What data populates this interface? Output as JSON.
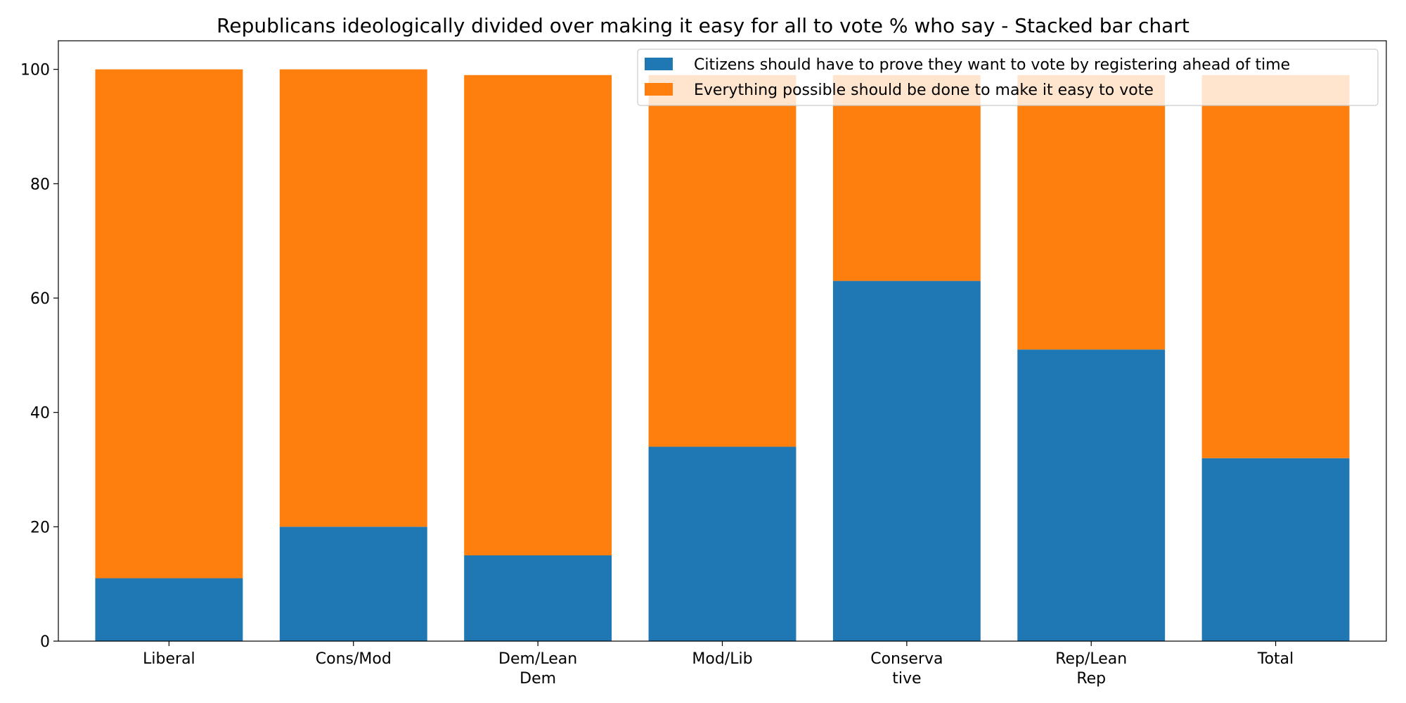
{
  "chart_data": {
    "type": "bar",
    "stacked": true,
    "title": "Republicans ideologically divided over making it easy for all to vote % who say  - Stacked bar chart",
    "xlabel": "",
    "ylabel": "",
    "categories": [
      [
        "Liberal"
      ],
      [
        "Cons/Mod"
      ],
      [
        "Dem/Lean",
        "Dem"
      ],
      [
        "Mod/Lib"
      ],
      [
        "Conserva",
        "tive"
      ],
      [
        "Rep/Lean",
        "Rep"
      ],
      [
        "Total"
      ]
    ],
    "series": [
      {
        "name": "Citizens should have to prove they want to vote by registering ahead of time",
        "color": "#1f77b4",
        "values": [
          11,
          20,
          15,
          34,
          63,
          51,
          32
        ]
      },
      {
        "name": "Everything possible should be done to make it easy to vote",
        "color": "#ff7f0e",
        "values": [
          89,
          80,
          84,
          65,
          36,
          48,
          67
        ]
      }
    ],
    "ylim": [
      0,
      105
    ],
    "yticks": [
      0,
      20,
      40,
      60,
      80,
      100
    ],
    "grid": false,
    "legend_position": "top-right"
  }
}
